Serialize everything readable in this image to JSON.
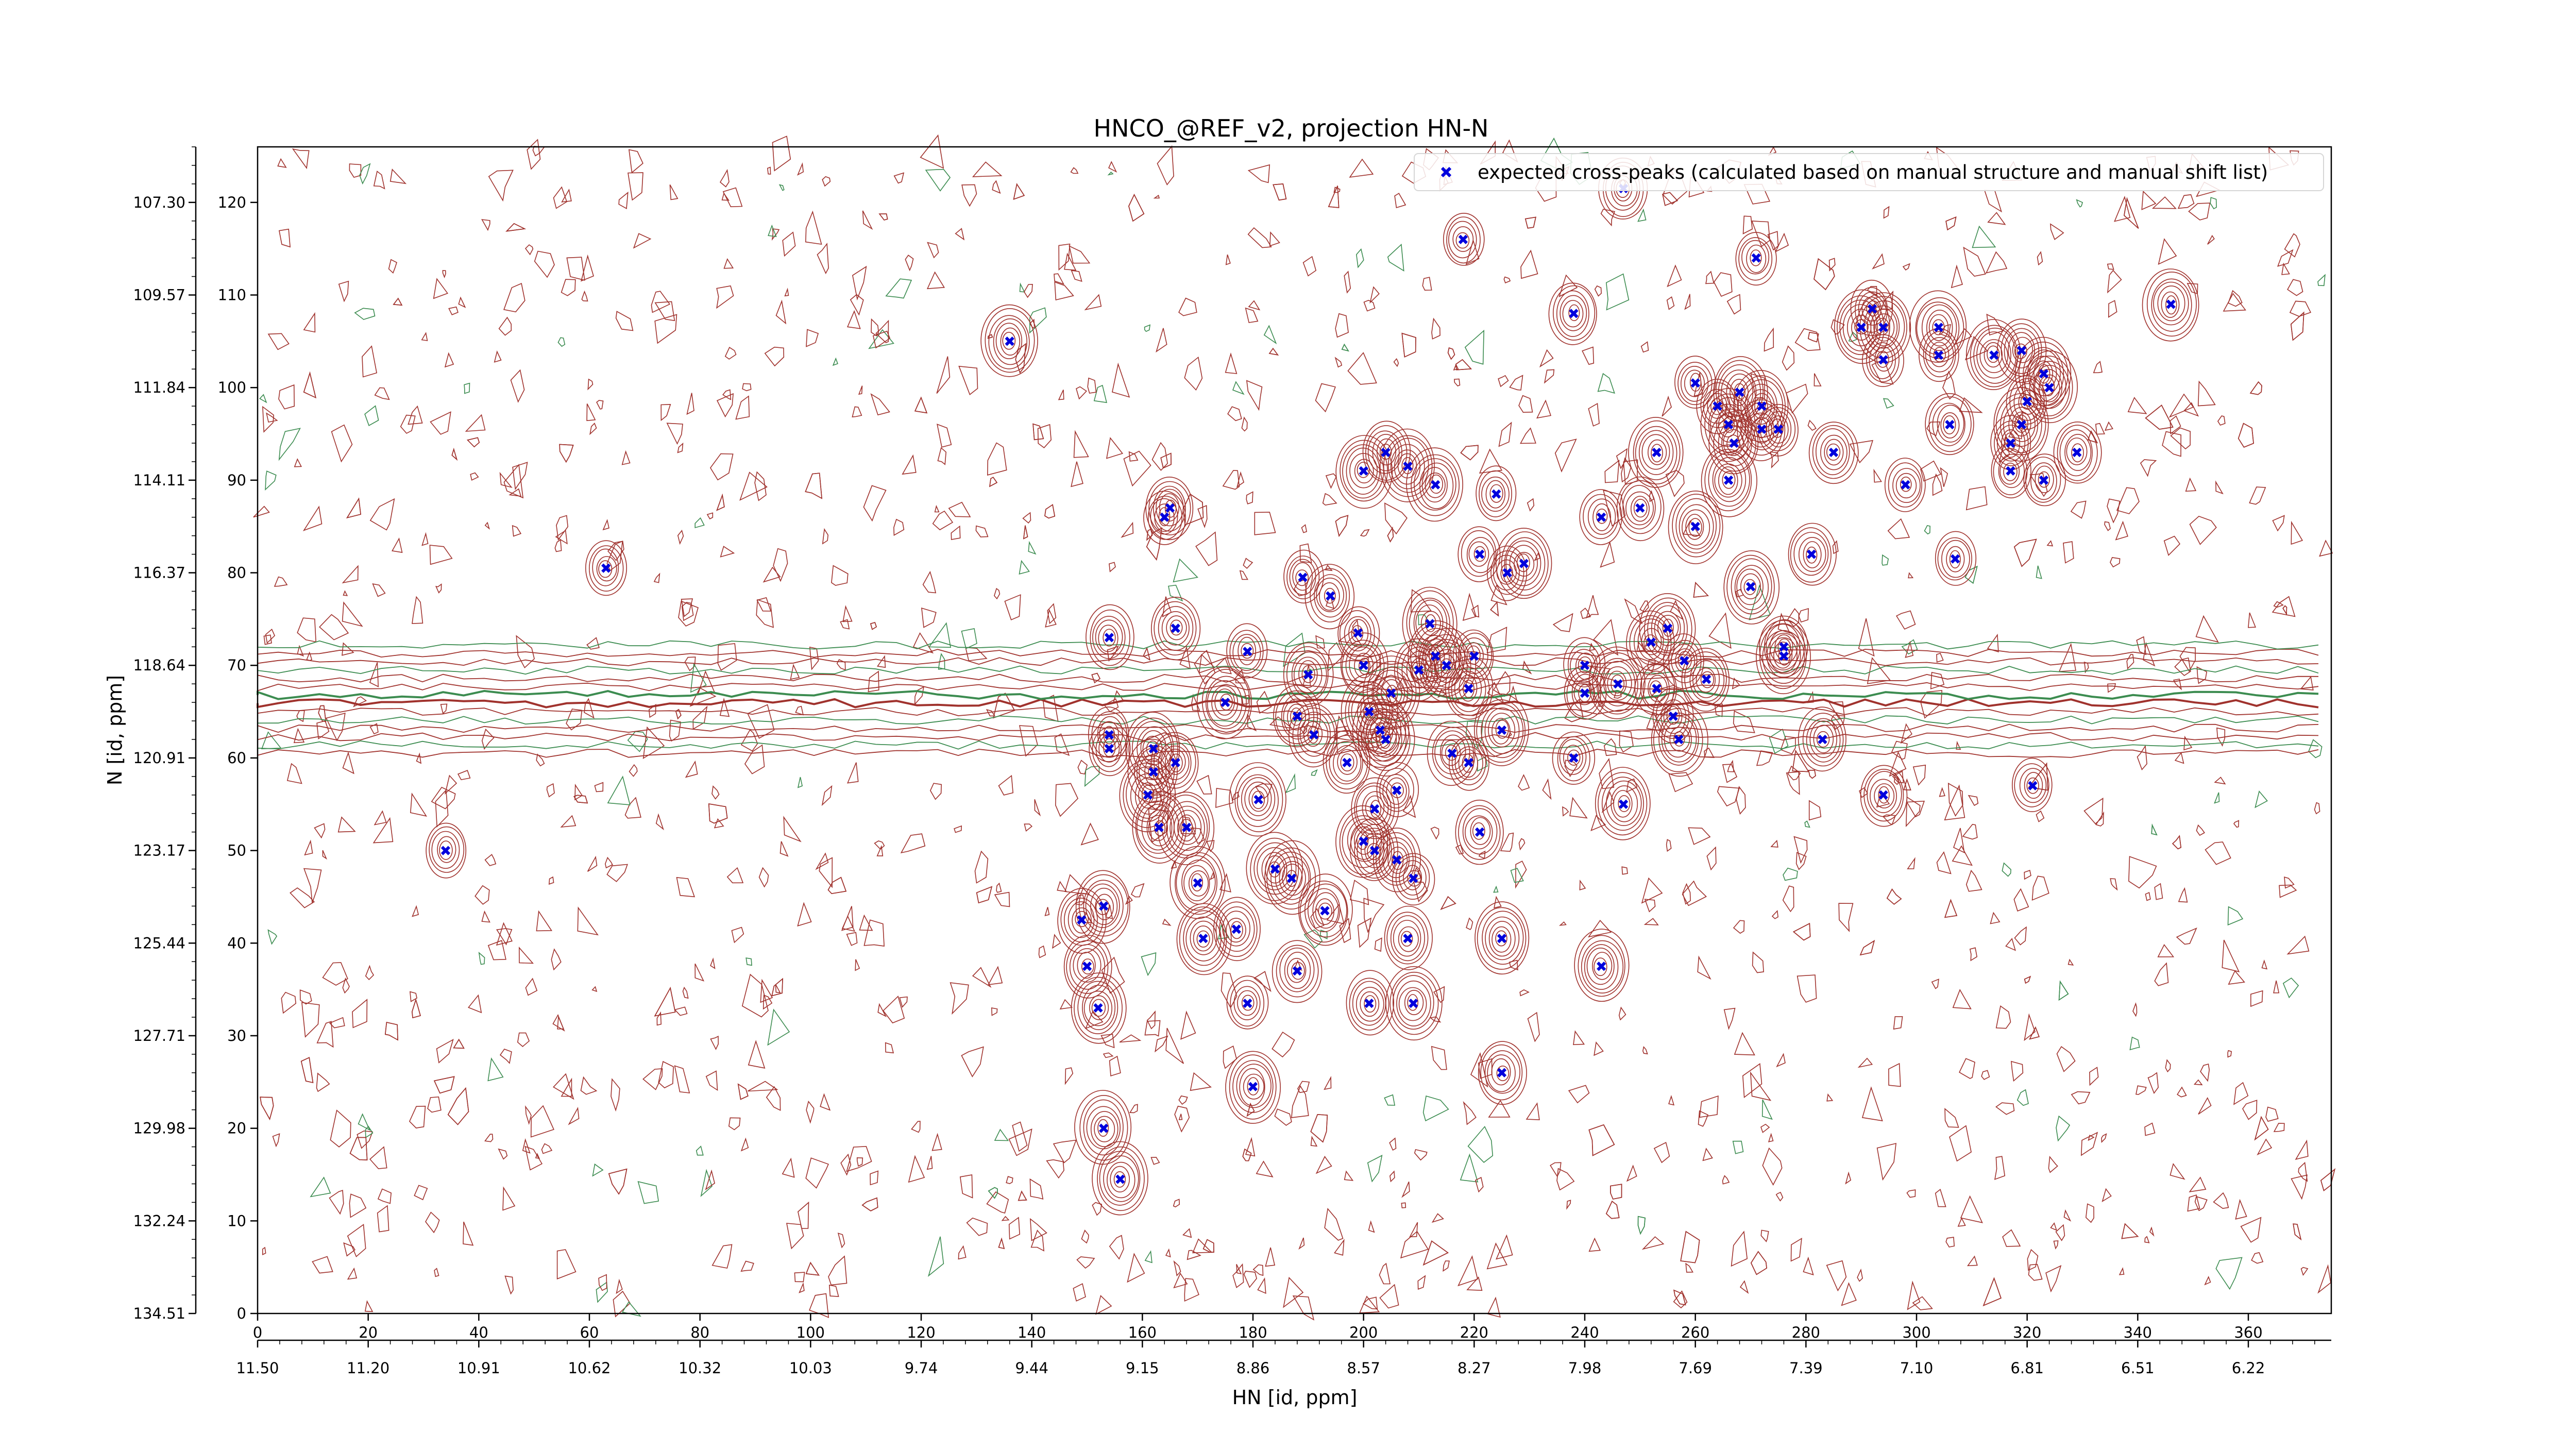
{
  "chart_data": {
    "type": "scatter",
    "title": "HNCO_@REF_v2, projection HN-N",
    "xlabel": "HN [id, ppm]",
    "ylabel": "N [id, ppm]",
    "x_index_ticks": [
      0,
      20,
      40,
      60,
      80,
      100,
      120,
      140,
      160,
      180,
      200,
      220,
      240,
      260,
      280,
      300,
      320,
      340,
      360
    ],
    "x_ppm_ticks": [
      "11.50",
      "11.20",
      "10.91",
      "10.62",
      "10.32",
      "10.03",
      "9.74",
      "9.44",
      "9.15",
      "8.86",
      "8.57",
      "8.27",
      "7.98",
      "7.69",
      "7.39",
      "7.10",
      "6.81",
      "6.51",
      "6.22"
    ],
    "y_index_ticks": [
      0,
      10,
      20,
      30,
      40,
      50,
      60,
      70,
      80,
      90,
      100,
      110,
      120
    ],
    "y_ppm_ticks": [
      "134.51",
      "132.24",
      "129.98",
      "127.71",
      "125.44",
      "123.17",
      "120.91",
      "118.64",
      "116.37",
      "114.11",
      "111.84",
      "109.57",
      "107.30"
    ],
    "xlim": [
      0,
      375
    ],
    "ylim": [
      0,
      126
    ],
    "legend": {
      "label": "expected cross-peaks (calculated based on manual structure and manual shift list)",
      "position": "top-right"
    },
    "colors": {
      "positive_contour": "#a0322d",
      "negative_contour": "#3c8c50",
      "marker": "#0000dd"
    },
    "series": [
      {
        "name": "expected cross-peaks (calculated based on manual structure and manual shift list)",
        "marker": "x",
        "points": [
          [
            34,
            50
          ],
          [
            63,
            80.5
          ],
          [
            136,
            105
          ],
          [
            149,
            42.5
          ],
          [
            150,
            37.5
          ],
          [
            152,
            33
          ],
          [
            153,
            20
          ],
          [
            153,
            44
          ],
          [
            154,
            73
          ],
          [
            154,
            62.5
          ],
          [
            154,
            61
          ],
          [
            156,
            14.5
          ],
          [
            161,
            56
          ],
          [
            162,
            58.5
          ],
          [
            162,
            61
          ],
          [
            163,
            52.5
          ],
          [
            164,
            86
          ],
          [
            165,
            87
          ],
          [
            166,
            74
          ],
          [
            166,
            59.5
          ],
          [
            168,
            52.5
          ],
          [
            170,
            46.5
          ],
          [
            171,
            40.5
          ],
          [
            175,
            66
          ],
          [
            177,
            41.5
          ],
          [
            179,
            71.5
          ],
          [
            179,
            33.5
          ],
          [
            180,
            24.5
          ],
          [
            181,
            55.5
          ],
          [
            184,
            48
          ],
          [
            187,
            47
          ],
          [
            188,
            37
          ],
          [
            188,
            64.5
          ],
          [
            189,
            79.5
          ],
          [
            190,
            69
          ],
          [
            191,
            62.5
          ],
          [
            193,
            43.5
          ],
          [
            194,
            77.5
          ],
          [
            197,
            59.5
          ],
          [
            199,
            73.5
          ],
          [
            200,
            91
          ],
          [
            201,
            33.5
          ],
          [
            200,
            70
          ],
          [
            200,
            51
          ],
          [
            201,
            65
          ],
          [
            202,
            54.5
          ],
          [
            202,
            50
          ],
          [
            203,
            63
          ],
          [
            204,
            62
          ],
          [
            204,
            93
          ],
          [
            205,
            67
          ],
          [
            206,
            49
          ],
          [
            206,
            56.5
          ],
          [
            208,
            91.5
          ],
          [
            208,
            40.5
          ],
          [
            209,
            47
          ],
          [
            209,
            33.5
          ],
          [
            210,
            69.5
          ],
          [
            212,
            74.5
          ],
          [
            213,
            89.5
          ],
          [
            213,
            71
          ],
          [
            215,
            70
          ],
          [
            216,
            60.5
          ],
          [
            218,
            116
          ],
          [
            219,
            67.5
          ],
          [
            219,
            59.5
          ],
          [
            220,
            71
          ],
          [
            221,
            52
          ],
          [
            221,
            82
          ],
          [
            225,
            26
          ],
          [
            224,
            88.5
          ],
          [
            225,
            40.5
          ],
          [
            225,
            63
          ],
          [
            226,
            80
          ],
          [
            229,
            81
          ],
          [
            238,
            108
          ],
          [
            238,
            60
          ],
          [
            240,
            70
          ],
          [
            240,
            67
          ],
          [
            243,
            37.5
          ],
          [
            243,
            86
          ],
          [
            246,
            68
          ],
          [
            247,
            55
          ],
          [
            247,
            121.5
          ],
          [
            250,
            87
          ],
          [
            252,
            72.5
          ],
          [
            253,
            93
          ],
          [
            253,
            67.5
          ],
          [
            255,
            74
          ],
          [
            256,
            64.5
          ],
          [
            257,
            62
          ],
          [
            258,
            70.5
          ],
          [
            260,
            85
          ],
          [
            260,
            100.5
          ],
          [
            262,
            68.5
          ],
          [
            264,
            98
          ],
          [
            266,
            96
          ],
          [
            266,
            90
          ],
          [
            267,
            94
          ],
          [
            268,
            99.5
          ],
          [
            270,
            78.5
          ],
          [
            271,
            114
          ],
          [
            272,
            98
          ],
          [
            272,
            95.5
          ],
          [
            275,
            95.5
          ],
          [
            276,
            72
          ],
          [
            276,
            71
          ],
          [
            281,
            82
          ],
          [
            283,
            62
          ],
          [
            285,
            93
          ],
          [
            290,
            106.5
          ],
          [
            292,
            108.5
          ],
          [
            294,
            103
          ],
          [
            294,
            106.5
          ],
          [
            294,
            56
          ],
          [
            298,
            89.5
          ],
          [
            304,
            103.5
          ],
          [
            304,
            106.5
          ],
          [
            306,
            96
          ],
          [
            307,
            81.5
          ],
          [
            314,
            103.5
          ],
          [
            317,
            94
          ],
          [
            317,
            91
          ],
          [
            319,
            104
          ],
          [
            319,
            96
          ],
          [
            320,
            98.5
          ],
          [
            321,
            57
          ],
          [
            323,
            101.5
          ],
          [
            323,
            90
          ],
          [
            324,
            100
          ],
          [
            329,
            93
          ],
          [
            346,
            109
          ]
        ]
      }
    ]
  }
}
